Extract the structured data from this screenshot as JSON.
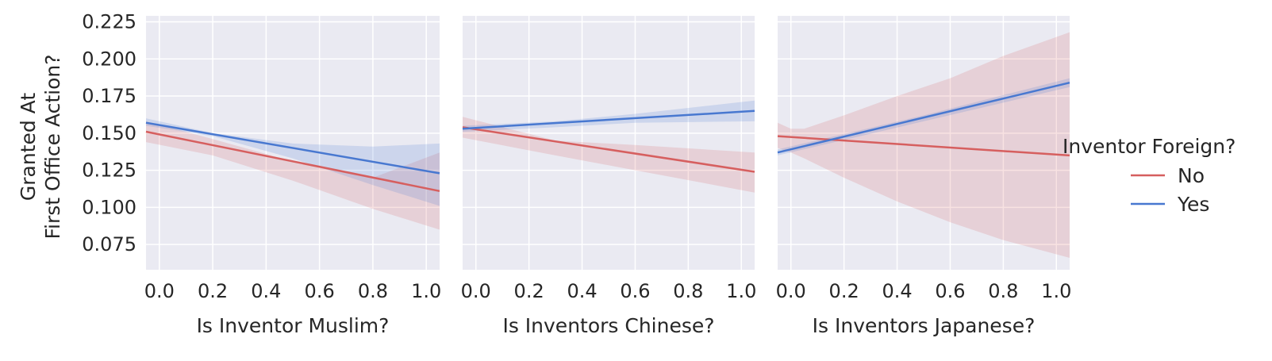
{
  "legend": {
    "title": "Inventor Foreign?",
    "entries": [
      {
        "label": "No",
        "color": "#d65f5f"
      },
      {
        "label": "Yes",
        "color": "#4878d0"
      }
    ]
  },
  "ylabel_lines": [
    "Granted At",
    "First Office Action?"
  ],
  "chart_data": [
    {
      "type": "line",
      "xlabel": "Is Inventor Muslim?",
      "ylabel": "Granted At First Office Action?",
      "xlim": [
        -0.05,
        1.05
      ],
      "ylim": [
        0.058,
        0.229
      ],
      "xticks": [
        0.0,
        0.2,
        0.4,
        0.6,
        0.8,
        1.0
      ],
      "xtick_labels": [
        "0.0",
        "0.2",
        "0.4",
        "0.6",
        "0.8",
        "1.0"
      ],
      "yticks": [
        0.075,
        0.1,
        0.125,
        0.15,
        0.175,
        0.2,
        0.225
      ],
      "ytick_labels": [
        "0.075",
        "0.100",
        "0.125",
        "0.150",
        "0.175",
        "0.200",
        "0.225"
      ],
      "grid": true,
      "series": [
        {
          "name": "No",
          "color": "#d65f5f",
          "x": [
            -0.05,
            1.05
          ],
          "y": [
            0.151,
            0.111
          ],
          "ci_x": [
            -0.05,
            0.2,
            0.5,
            0.8,
            1.05
          ],
          "ci_lower": [
            0.144,
            0.135,
            0.118,
            0.099,
            0.085
          ],
          "ci_upper": [
            0.158,
            0.146,
            0.131,
            0.12,
            0.137
          ]
        },
        {
          "name": "Yes",
          "color": "#4878d0",
          "x": [
            -0.05,
            1.05
          ],
          "y": [
            0.157,
            0.123
          ],
          "ci_x": [
            -0.05,
            0.2,
            0.5,
            0.8,
            1.05
          ],
          "ci_lower": [
            0.155,
            0.148,
            0.133,
            0.115,
            0.101
          ],
          "ci_upper": [
            0.16,
            0.15,
            0.143,
            0.141,
            0.143
          ]
        }
      ]
    },
    {
      "type": "line",
      "xlabel": "Is Inventors Chinese?",
      "ylabel": "",
      "xlim": [
        -0.05,
        1.05
      ],
      "ylim": [
        0.058,
        0.229
      ],
      "xticks": [
        0.0,
        0.2,
        0.4,
        0.6,
        0.8,
        1.0
      ],
      "xtick_labels": [
        "0.0",
        "0.2",
        "0.4",
        "0.6",
        "0.8",
        "1.0"
      ],
      "yticks": [
        0.075,
        0.1,
        0.125,
        0.15,
        0.175,
        0.2,
        0.225
      ],
      "ytick_labels": [],
      "grid": true,
      "series": [
        {
          "name": "No",
          "color": "#d65f5f",
          "x": [
            -0.05,
            1.05
          ],
          "y": [
            0.154,
            0.124
          ],
          "ci_x": [
            -0.05,
            0.3,
            0.6,
            1.05
          ],
          "ci_lower": [
            0.147,
            0.135,
            0.125,
            0.11
          ],
          "ci_upper": [
            0.161,
            0.145,
            0.142,
            0.137
          ]
        },
        {
          "name": "Yes",
          "color": "#4878d0",
          "x": [
            -0.05,
            1.05
          ],
          "y": [
            0.153,
            0.165
          ],
          "ci_x": [
            -0.05,
            0.3,
            0.6,
            1.05
          ],
          "ci_lower": [
            0.151,
            0.154,
            0.157,
            0.158
          ],
          "ci_upper": [
            0.155,
            0.158,
            0.163,
            0.172
          ]
        }
      ]
    },
    {
      "type": "line",
      "xlabel": "Is Inventors Japanese?",
      "ylabel": "",
      "xlim": [
        -0.05,
        1.05
      ],
      "ylim": [
        0.058,
        0.229
      ],
      "xticks": [
        0.0,
        0.2,
        0.4,
        0.6,
        0.8,
        1.0
      ],
      "xtick_labels": [
        "0.0",
        "0.2",
        "0.4",
        "0.6",
        "0.8",
        "1.0"
      ],
      "yticks": [
        0.075,
        0.1,
        0.125,
        0.15,
        0.175,
        0.2,
        0.225
      ],
      "ytick_labels": [],
      "grid": true,
      "series": [
        {
          "name": "No",
          "color": "#d65f5f",
          "x": [
            -0.05,
            1.05
          ],
          "y": [
            0.148,
            0.135
          ],
          "ci_x": [
            -0.05,
            0.0,
            0.05,
            0.2,
            0.4,
            0.6,
            0.8,
            1.05
          ],
          "ci_lower": [
            0.14,
            0.137,
            0.133,
            0.12,
            0.104,
            0.09,
            0.078,
            0.066
          ],
          "ci_upper": [
            0.157,
            0.153,
            0.153,
            0.162,
            0.175,
            0.187,
            0.202,
            0.218
          ]
        },
        {
          "name": "Yes",
          "color": "#4878d0",
          "x": [
            -0.05,
            1.05
          ],
          "y": [
            0.137,
            0.184
          ],
          "ci_x": [
            -0.05,
            0.5,
            1.05
          ],
          "ci_lower": [
            0.135,
            0.158,
            0.181
          ],
          "ci_upper": [
            0.139,
            0.162,
            0.187
          ]
        }
      ]
    }
  ]
}
